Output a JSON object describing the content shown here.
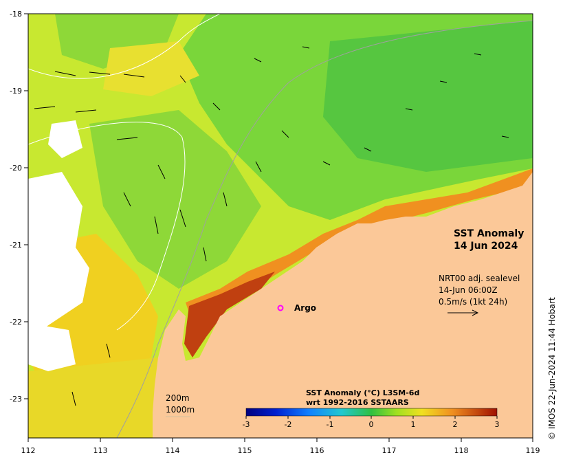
{
  "map": {
    "title_line1": "SST Anomaly",
    "title_line2": "14 Jun 2024",
    "x_ticks": [
      "112",
      "113",
      "114",
      "115",
      "116",
      "117",
      "118",
      "119"
    ],
    "y_ticks": [
      "-18",
      "-19",
      "-20",
      "-21",
      "-22",
      "-23"
    ],
    "lon_range": [
      112,
      119
    ],
    "lat_range": [
      -23.5,
      -18
    ],
    "argo": {
      "label": "Argo",
      "lon": 115.5,
      "lat": -21.85
    },
    "current_info": {
      "line1": "NRT00 adj. sealevel",
      "line2": "14-Jun 06:00Z",
      "line3": "0.5m/s (1kt 24h)"
    },
    "depth_contours": {
      "line1": "200m",
      "line2": "1000m"
    },
    "colorbar": {
      "title_line1": "SST Anomaly (°C) L3SM-6d",
      "title_line2": "wrt 1992-2016 SSTAARS",
      "ticks": [
        "-3",
        "-2",
        "-1",
        "0",
        "1",
        "2",
        "3"
      ],
      "range": [
        -3,
        3
      ]
    },
    "copyright": "© IMOS 22-Jun-2024 11:44 Hobart",
    "colors": {
      "land": "#fbc898",
      "ocean_cool": "#7ad63a",
      "ocean_mid": "#c8e830",
      "ocean_warm": "#f0d020",
      "ocean_hot": "#c04010",
      "argo_marker": "#ff00ff"
    }
  }
}
